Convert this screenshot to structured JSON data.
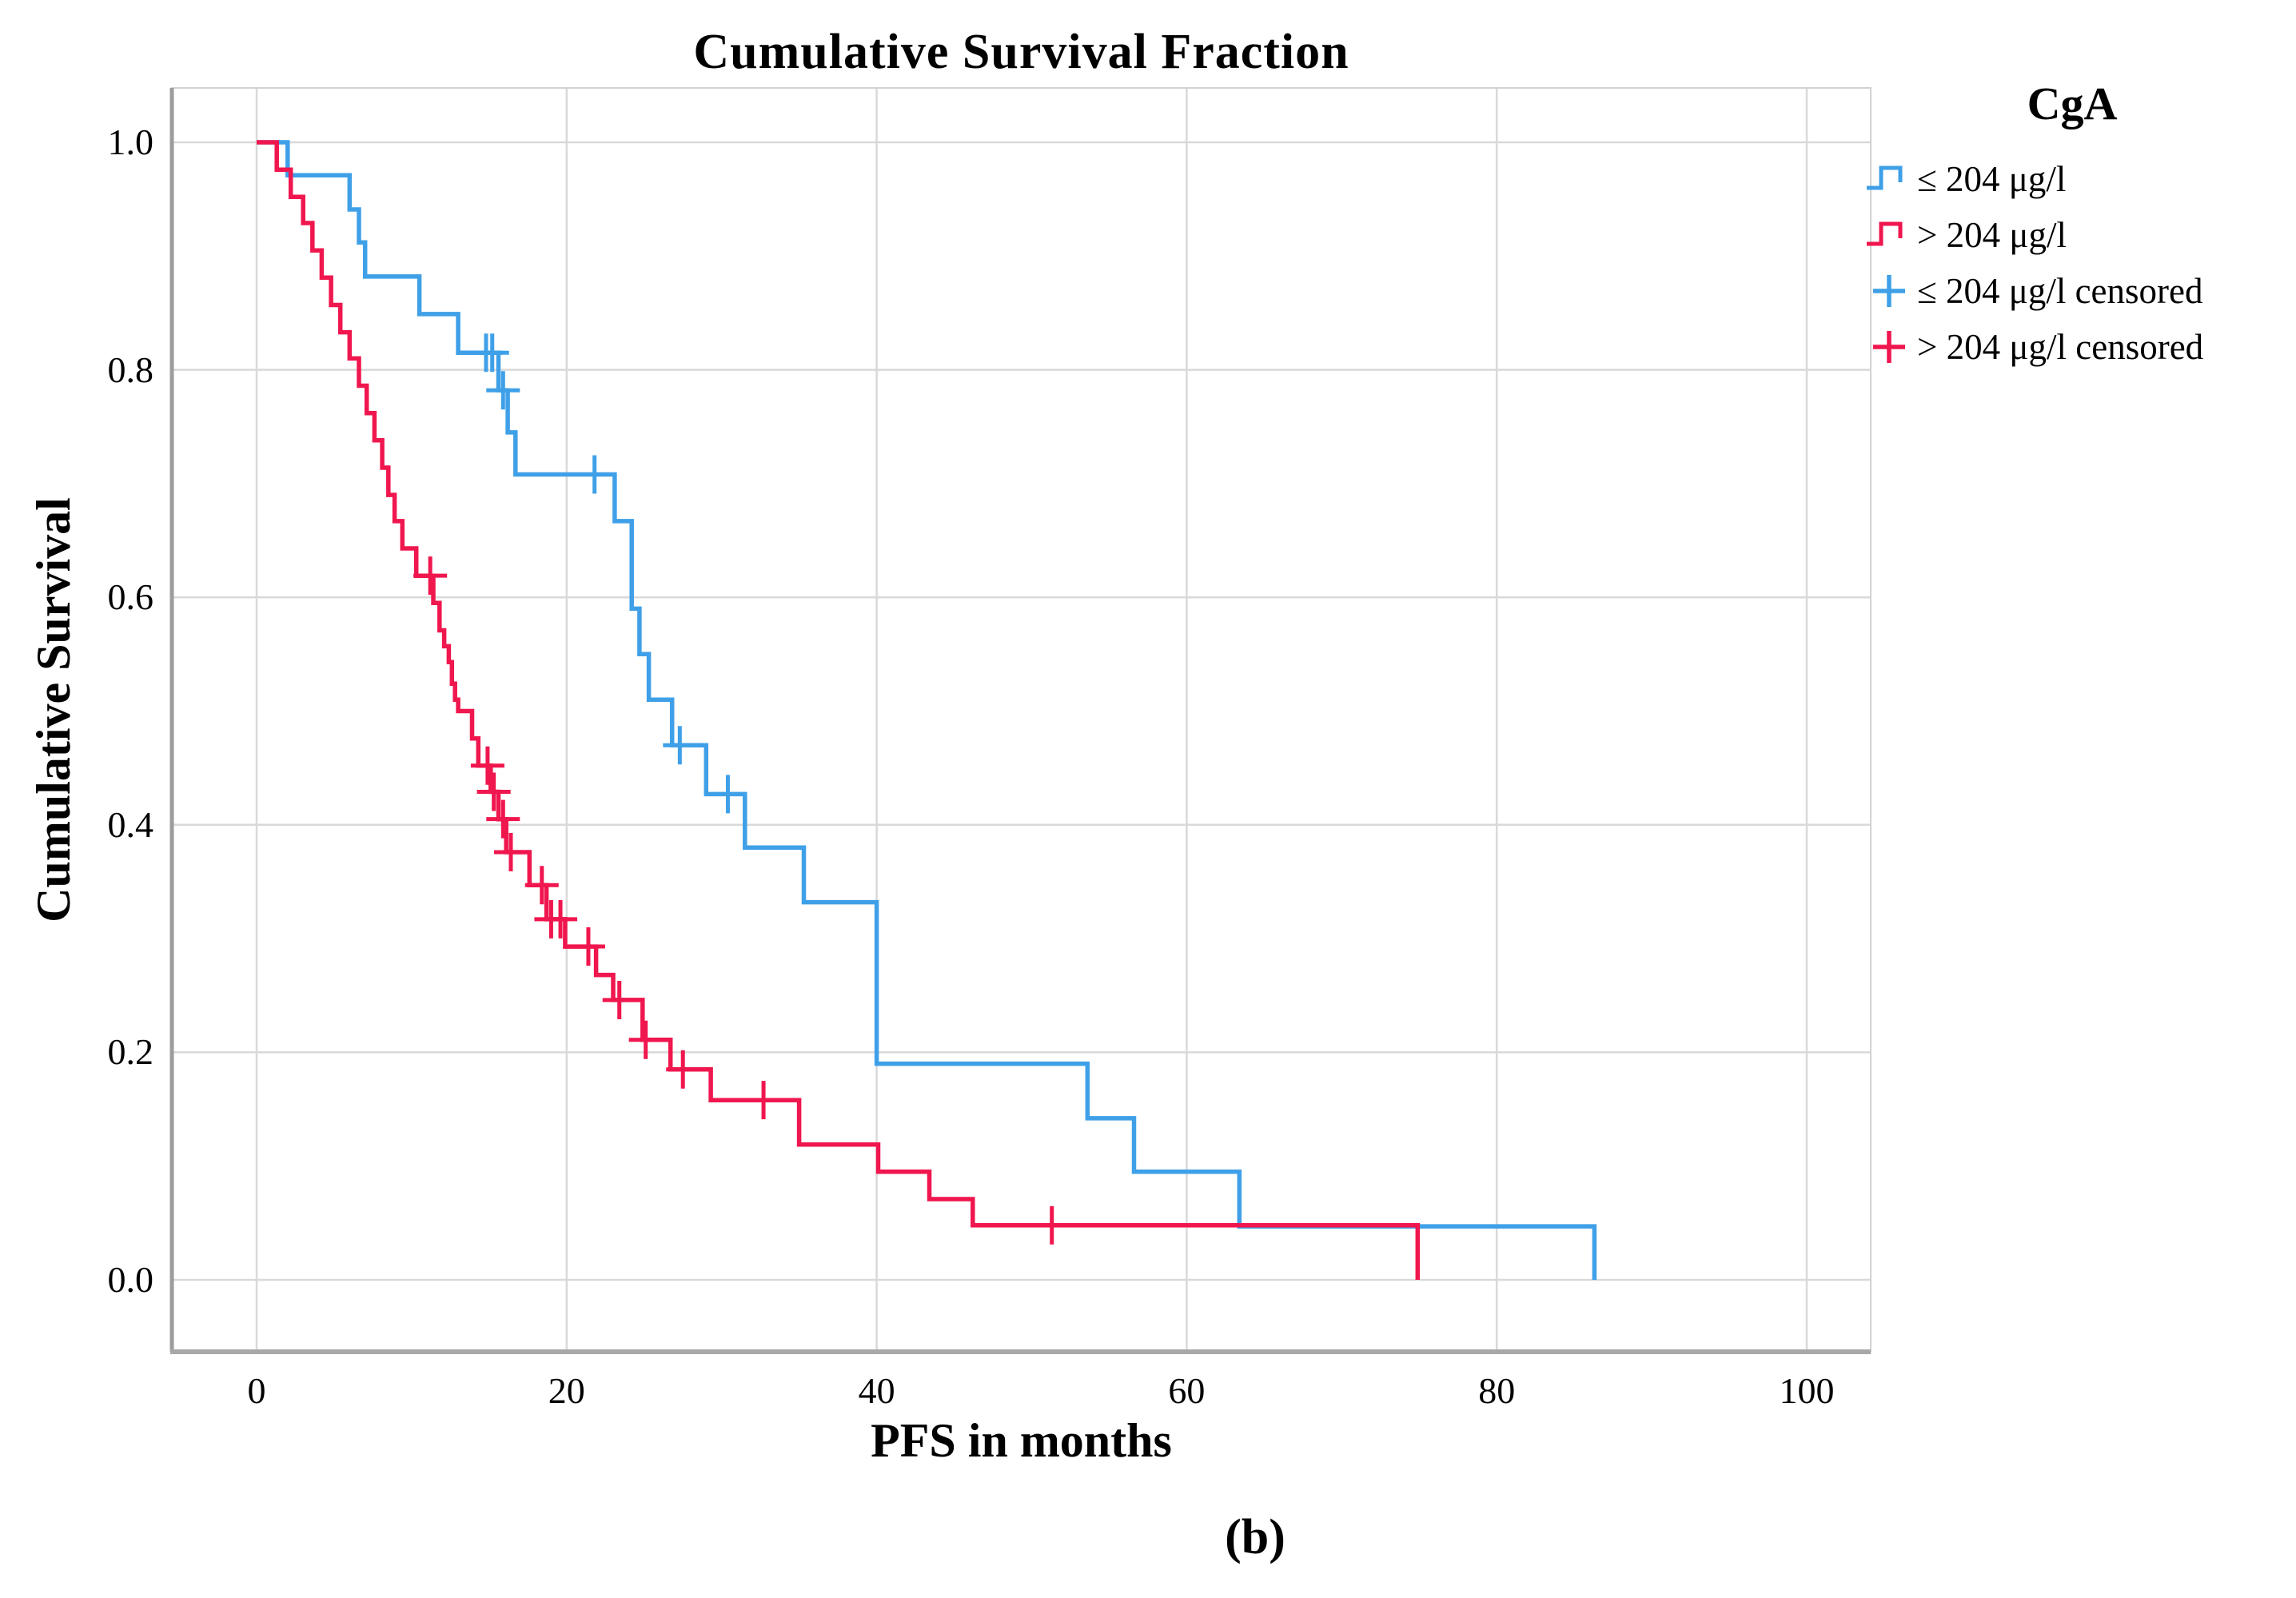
{
  "figure_caption": "(b)",
  "chart_data": {
    "type": "line",
    "subtype": "kaplan_meier_step",
    "title": "Cumulative Survival Fraction",
    "grid": true,
    "background": "#ffffff",
    "gridline_color": "#d9d9d9",
    "frame_color": "#d2d2d2",
    "spine_color": "#9c9c9c",
    "x_axis": {
      "label": "PFS in months",
      "range": [
        -5.5,
        104
      ],
      "ticks": [
        {
          "value": 0,
          "label": "0"
        },
        {
          "value": 20,
          "label": "20"
        },
        {
          "value": 40,
          "label": "40"
        },
        {
          "value": 60,
          "label": "60"
        },
        {
          "value": 80,
          "label": "80"
        },
        {
          "value": 100,
          "label": "100"
        }
      ]
    },
    "y_axis": {
      "label": "Cumulative Survival",
      "range": [
        -0.063,
        1.048
      ],
      "ticks": [
        {
          "value": 1.0,
          "label": "1.0"
        },
        {
          "value": 0.8,
          "label": "0.8"
        },
        {
          "value": 0.6,
          "label": "0.6"
        },
        {
          "value": 0.4,
          "label": "0.4"
        },
        {
          "value": 0.2,
          "label": "0.2"
        },
        {
          "value": 0.0,
          "label": "0.0"
        }
      ]
    },
    "legend": {
      "title": "CgA",
      "position": "top-right",
      "items": [
        {
          "label": "≤ 204 μg/l",
          "symbol": "step",
          "color": "#3FA0E8"
        },
        {
          "label": "> 204 μg/l",
          "symbol": "step",
          "color": "#F0164E"
        },
        {
          "label": "≤ 204 μg/l censored",
          "symbol": "plus",
          "color": "#3FA0E8"
        },
        {
          "label": "> 204 μg/l censored",
          "symbol": "plus",
          "color": "#F0164E"
        }
      ]
    },
    "series": [
      {
        "name": "≤ 204 μg/l",
        "color": "#3FA0E8",
        "steps": [
          [
            0,
            1.0
          ],
          [
            2,
            0.971
          ],
          [
            6,
            0.941
          ],
          [
            6.6,
            0.912
          ],
          [
            7,
            0.882
          ],
          [
            10.5,
            0.849
          ],
          [
            13,
            0.815
          ],
          [
            15.6,
            0.782
          ],
          [
            16.2,
            0.745
          ],
          [
            16.7,
            0.708
          ],
          [
            23.1,
            0.667
          ],
          [
            24.2,
            0.59
          ],
          [
            24.7,
            0.55
          ],
          [
            25.3,
            0.51
          ],
          [
            26.8,
            0.47
          ],
          [
            29,
            0.427
          ],
          [
            31.5,
            0.38
          ],
          [
            35.3,
            0.332
          ],
          [
            40,
            0.19
          ],
          [
            53.6,
            0.142
          ],
          [
            56.6,
            0.095
          ],
          [
            63.4,
            0.047
          ],
          [
            86.3,
            0
          ]
        ],
        "censored": [
          [
            14.8,
            0.815
          ],
          [
            15.2,
            0.815
          ],
          [
            15.9,
            0.782
          ],
          [
            21.8,
            0.708
          ],
          [
            27.3,
            0.47
          ],
          [
            30.4,
            0.427
          ]
        ]
      },
      {
        "name": "> 204 μg/l",
        "color": "#F0164E",
        "steps": [
          [
            0,
            1.0
          ],
          [
            1.3,
            0.976
          ],
          [
            2.2,
            0.952
          ],
          [
            3,
            0.929
          ],
          [
            3.6,
            0.905
          ],
          [
            4.2,
            0.881
          ],
          [
            4.8,
            0.857
          ],
          [
            5.4,
            0.833
          ],
          [
            6,
            0.81
          ],
          [
            6.6,
            0.786
          ],
          [
            7.1,
            0.762
          ],
          [
            7.6,
            0.738
          ],
          [
            8.1,
            0.714
          ],
          [
            8.5,
            0.69
          ],
          [
            8.9,
            0.667
          ],
          [
            9.4,
            0.643
          ],
          [
            10.3,
            0.619
          ],
          [
            11.4,
            0.595
          ],
          [
            11.8,
            0.571
          ],
          [
            12.1,
            0.557
          ],
          [
            12.4,
            0.543
          ],
          [
            12.6,
            0.524
          ],
          [
            12.8,
            0.51
          ],
          [
            13,
            0.5
          ],
          [
            13.9,
            0.476
          ],
          [
            14.3,
            0.452
          ],
          [
            15.1,
            0.429
          ],
          [
            15.6,
            0.405
          ],
          [
            16.1,
            0.376
          ],
          [
            17.6,
            0.347
          ],
          [
            18.7,
            0.317
          ],
          [
            19.9,
            0.293
          ],
          [
            21.9,
            0.268
          ],
          [
            23,
            0.246
          ],
          [
            24.9,
            0.211
          ],
          [
            26.7,
            0.185
          ],
          [
            29.3,
            0.158
          ],
          [
            35,
            0.119
          ],
          [
            40.1,
            0.095
          ],
          [
            43.4,
            0.071
          ],
          [
            46.2,
            0.048
          ],
          [
            74.9,
            0
          ]
        ],
        "censored": [
          [
            11.2,
            0.619
          ],
          [
            14.9,
            0.452
          ],
          [
            15.3,
            0.429
          ],
          [
            15.9,
            0.405
          ],
          [
            16.4,
            0.376
          ],
          [
            18.4,
            0.347
          ],
          [
            19,
            0.317
          ],
          [
            19.6,
            0.317
          ],
          [
            21.4,
            0.293
          ],
          [
            23.4,
            0.246
          ],
          [
            25.1,
            0.211
          ],
          [
            27.5,
            0.185
          ],
          [
            32.7,
            0.158
          ],
          [
            51.3,
            0.048
          ]
        ]
      }
    ]
  }
}
